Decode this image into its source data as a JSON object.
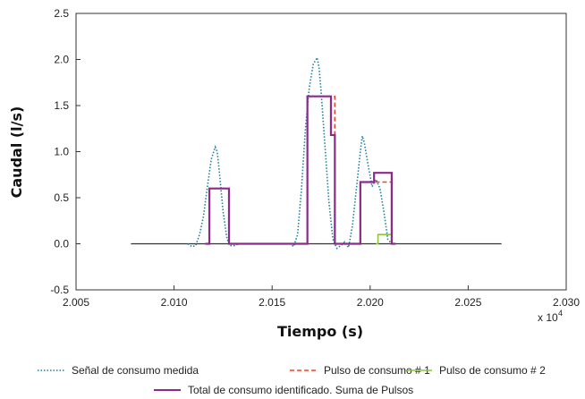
{
  "chart_data": {
    "type": "line",
    "title": "",
    "xlabel": "Tiempo (s)",
    "ylabel": "Caudal (l/s)",
    "x_multiplier_label": "x 10",
    "x_multiplier_exp": "4",
    "xlim": [
      2.005,
      2.03
    ],
    "ylim": [
      -0.5,
      2.5
    ],
    "x_ticks": [
      2.005,
      2.01,
      2.015,
      2.02,
      2.025,
      2.03
    ],
    "x_tick_labels": [
      "2.005",
      "2.010",
      "2.015",
      "2.020",
      "2.025",
      "2.030"
    ],
    "y_ticks": [
      -0.5,
      0.0,
      0.5,
      1.0,
      1.5,
      2.0,
      2.5
    ],
    "y_tick_labels": [
      "-0.5",
      "0.0",
      "0.5",
      "1.0",
      "1.5",
      "2.0",
      "2.5"
    ],
    "grid": false,
    "legend_position": "bottom",
    "baseline": {
      "x": [
        2.0078,
        2.0267
      ],
      "y": [
        0,
        0
      ],
      "color": "#333333"
    },
    "series": [
      {
        "name": "Señal de consumo medida",
        "style": "dotted",
        "color": "#1f7f9f",
        "x": [
          2.0107,
          2.0109,
          2.0111,
          2.0113,
          2.0115,
          2.0117,
          2.0119,
          2.0121,
          2.0122,
          2.0123,
          2.0125,
          2.0127,
          2.0129,
          2.0131,
          2.0133,
          2.0159,
          2.0161,
          2.0163,
          2.0165,
          2.0167,
          2.0169,
          2.0171,
          2.0173,
          2.0174,
          2.0175,
          2.0177,
          2.0179,
          2.0181,
          2.0183,
          2.0185,
          2.0187,
          2.0189,
          2.0191,
          2.0193,
          2.0195,
          2.0196,
          2.0197,
          2.0199,
          2.0201,
          2.0203,
          2.0205,
          2.0207,
          2.0209,
          2.0211
        ],
        "y": [
          0,
          -0.03,
          -0.02,
          0.1,
          0.3,
          0.62,
          0.92,
          1.05,
          1.0,
          0.8,
          0.35,
          0.05,
          -0.02,
          -0.02,
          0,
          0,
          -0.03,
          0.1,
          0.6,
          1.25,
          1.7,
          1.95,
          2.02,
          1.9,
          1.65,
          1.05,
          0.45,
          0.05,
          -0.05,
          -0.02,
          0.02,
          -0.04,
          0.2,
          0.6,
          1.0,
          1.17,
          1.1,
          0.85,
          0.62,
          0.7,
          0.6,
          0.35,
          0.05,
          0
        ]
      },
      {
        "name": "Pulso de consumo # 1",
        "style": "dashed",
        "color": "#e8432b",
        "x": [
          2.0116,
          2.0118,
          2.0118,
          2.0128,
          2.0128,
          2.013,
          2.0166,
          2.0168,
          2.0168,
          2.0182,
          2.0182,
          2.0184,
          2.0193,
          2.0195,
          2.0195,
          2.0211,
          2.0211
        ],
        "y": [
          0,
          0,
          0.6,
          0.6,
          0,
          0,
          0,
          0,
          1.6,
          1.6,
          0,
          0,
          0,
          0,
          0.67,
          0.67,
          0
        ]
      },
      {
        "name": "Pulso de consumo # 2",
        "style": "solid",
        "color": "#8cc63f",
        "x": [
          2.0203,
          2.0204,
          2.0204,
          2.0211,
          2.0211
        ],
        "y": [
          0,
          0,
          0.1,
          0.1,
          0
        ]
      },
      {
        "name": "Total de consumo identificado. Suma de Pulsos",
        "style": "solid",
        "color": "#8b2a8b",
        "x": [
          2.0116,
          2.0118,
          2.0118,
          2.0128,
          2.0128,
          2.013,
          2.0166,
          2.0168,
          2.0168,
          2.018,
          2.018,
          2.0182,
          2.0182,
          2.0184,
          2.0193,
          2.0195,
          2.0195,
          2.0202,
          2.0202,
          2.0211,
          2.0211,
          2.0213
        ],
        "y": [
          0,
          0,
          0.6,
          0.6,
          0,
          0,
          0,
          0,
          1.6,
          1.6,
          1.18,
          1.18,
          0,
          0,
          0,
          0,
          0.67,
          0.67,
          0.77,
          0.77,
          0,
          0
        ]
      }
    ]
  }
}
